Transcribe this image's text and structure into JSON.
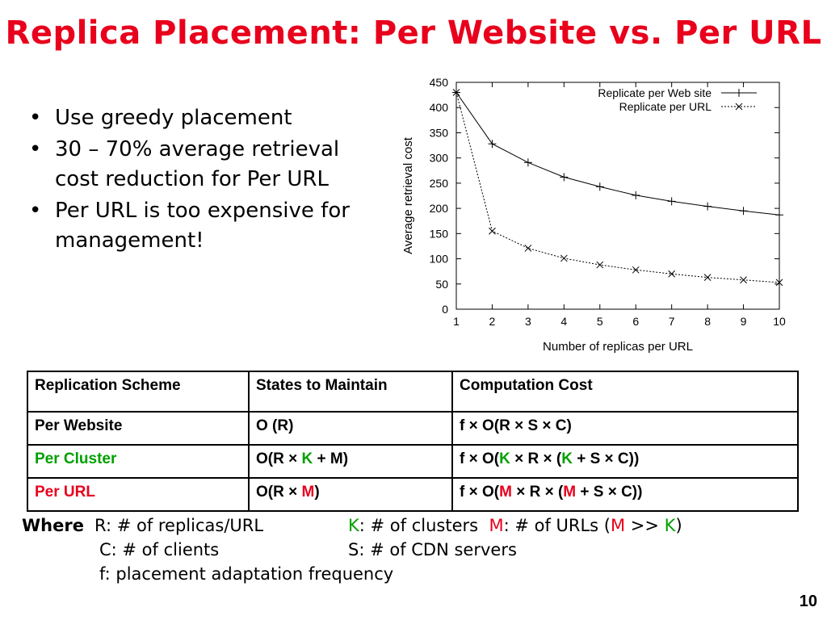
{
  "title": "Replica Placement: Per Website vs. Per URL",
  "bullets": [
    "Use greedy placement",
    "30 – 70% average retrieval cost reduction for Per URL",
    "Per URL is too expensive for management!"
  ],
  "chart_data": {
    "type": "line",
    "xlabel": "Number of replicas per URL",
    "ylabel": "Average retrieval cost",
    "xlim": [
      1,
      10
    ],
    "ylim": [
      0,
      450
    ],
    "x": [
      1,
      2,
      3,
      4,
      5,
      6,
      7,
      8,
      9,
      10
    ],
    "x_ticks": [
      "1",
      "2",
      "3",
      "4",
      "5",
      "6",
      "7",
      "8",
      "9",
      "10"
    ],
    "y_ticks": [
      "0",
      "50",
      "100",
      "150",
      "200",
      "250",
      "300",
      "350",
      "400",
      "450"
    ],
    "legend_position": "top-right",
    "grid": false,
    "series": [
      {
        "name": "Replicate per Web site",
        "marker": "+",
        "line": "solid",
        "values": [
          430,
          328,
          291,
          262,
          243,
          226,
          214,
          204,
          195,
          187
        ]
      },
      {
        "name": "Replicate per URL",
        "marker": "x",
        "line": "dotted",
        "values": [
          430,
          155,
          121,
          101,
          88,
          78,
          70,
          63,
          58,
          53
        ]
      }
    ]
  },
  "table": {
    "headers": [
      "Replication Scheme",
      "States to Maintain",
      "Computation Cost"
    ],
    "rows": [
      {
        "scheme": "Per Website",
        "scheme_color": "#000000",
        "states": [
          {
            "t": "O (R)",
            "c": "#000000"
          }
        ],
        "cost": [
          {
            "t": "f × O(R × S × C)",
            "c": "#000000"
          }
        ]
      },
      {
        "scheme": "Per Cluster",
        "scheme_color": "#00a000",
        "states": [
          {
            "t": "O(R × ",
            "c": "#000000"
          },
          {
            "t": "K",
            "c": "#00a000"
          },
          {
            "t": " + M)",
            "c": "#000000"
          }
        ],
        "cost": [
          {
            "t": "f × O(",
            "c": "#000000"
          },
          {
            "t": "K",
            "c": "#00a000"
          },
          {
            "t": " × R × (",
            "c": "#000000"
          },
          {
            "t": "K",
            "c": "#00a000"
          },
          {
            "t": " + S × C))",
            "c": "#000000"
          }
        ]
      },
      {
        "scheme": "Per URL",
        "scheme_color": "#e8001c",
        "states": [
          {
            "t": "O(R × ",
            "c": "#000000"
          },
          {
            "t": "M",
            "c": "#e8001c"
          },
          {
            "t": ")",
            "c": "#000000"
          }
        ],
        "cost": [
          {
            "t": "f × O(",
            "c": "#000000"
          },
          {
            "t": "M",
            "c": "#e8001c"
          },
          {
            "t": " × R × (",
            "c": "#000000"
          },
          {
            "t": "M",
            "c": "#e8001c"
          },
          {
            "t": " + S × C))",
            "c": "#000000"
          }
        ]
      }
    ]
  },
  "where": {
    "label": "Where",
    "r": "R: # of replicas/URL",
    "k_letter": "K",
    "k_rest": ": # of clusters",
    "m_letter": "M",
    "m_rest": ": # of URLs  (",
    "m_letter2": "M",
    "gg": " >> ",
    "k_letter2": "K",
    "close": ")",
    "c": "C:  # of clients",
    "s": "S: # of CDN servers",
    "f": "f: placement adaptation frequency"
  },
  "slide_number": "10",
  "colors": {
    "title": "#e8001c",
    "green": "#00a000",
    "red": "#e8001c"
  }
}
